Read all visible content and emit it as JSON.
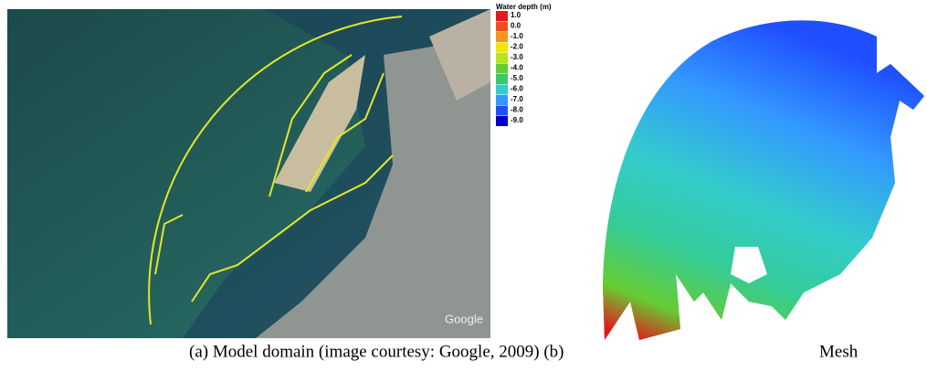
{
  "figure": {
    "panel_a": {
      "watermark": "Google"
    },
    "legend": {
      "title": "Water depth (m)",
      "entries": [
        {
          "label": "1.0",
          "color": "#e3191c"
        },
        {
          "label": "0.0",
          "color": "#f04e1a"
        },
        {
          "label": "-1.0",
          "color": "#f7941d"
        },
        {
          "label": "-2.0",
          "color": "#f2e600"
        },
        {
          "label": "-3.0",
          "color": "#b5e61d"
        },
        {
          "label": "-4.0",
          "color": "#66cc33"
        },
        {
          "label": "-5.0",
          "color": "#33cc66"
        },
        {
          "label": "-6.0",
          "color": "#33cccc"
        },
        {
          "label": "-7.0",
          "color": "#3399ff"
        },
        {
          "label": "-8.0",
          "color": "#1f4fff"
        },
        {
          "label": "-9.0",
          "color": "#0000cc"
        }
      ]
    },
    "caption": {
      "left": "(a) Model domain (image courtesy: Google, 2009) (b)",
      "right": "Mesh"
    }
  }
}
